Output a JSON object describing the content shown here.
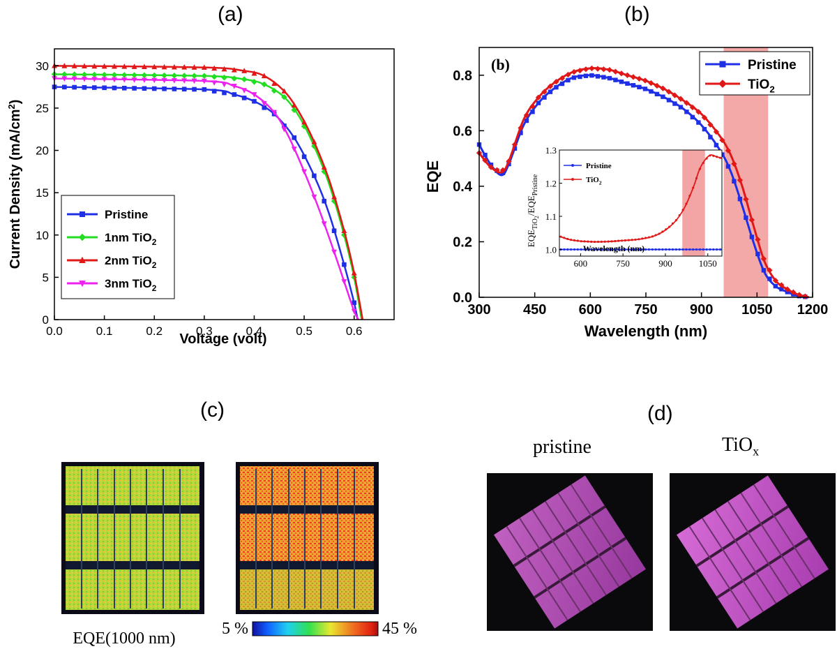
{
  "panels": {
    "a": "(a)",
    "b": "(b)",
    "c": "(c)",
    "d": "(d)"
  },
  "colors": {
    "pristine": "#1f2fe6",
    "tio2_1nm": "#22dd22",
    "tio2_2nm": "#e01818",
    "tio2_3nm": "#ee22ee",
    "highlight": "#f29a9a"
  },
  "chart_data": [
    {
      "id": "a",
      "type": "line",
      "title": "",
      "xlabel": "Voltage (volt)",
      "ylabel": "Current Density (mA/cm²)",
      "xlim": [
        0.0,
        0.68
      ],
      "ylim": [
        0,
        32
      ],
      "xticks": [
        "0.0",
        "0.1",
        "0.2",
        "0.3",
        "0.4",
        "0.5",
        "0.6"
      ],
      "yticks": [
        "0",
        "5",
        "10",
        "15",
        "20",
        "25",
        "30"
      ],
      "legend": {
        "position": "bottom-left",
        "entries": [
          "Pristine",
          "1nm TiO2",
          "2nm TiO2",
          "3nm TiO2"
        ]
      },
      "series": [
        {
          "name": "Pristine",
          "marker": "square",
          "x": [
            0,
            0.3,
            0.36,
            0.4,
            0.44,
            0.48,
            0.52,
            0.55,
            0.58,
            0.6,
            0.607
          ],
          "y": [
            27.5,
            27.2,
            26.6,
            25.8,
            24.3,
            21.5,
            17.0,
            12.5,
            6.5,
            2.0,
            0
          ]
        },
        {
          "name": "1nm TiO2",
          "marker": "diamond",
          "x": [
            0,
            0.3,
            0.38,
            0.42,
            0.46,
            0.49,
            0.52,
            0.55,
            0.58,
            0.6,
            0.615
          ],
          "y": [
            29.0,
            28.8,
            28.4,
            27.8,
            26.3,
            24.0,
            20.5,
            16.0,
            10.0,
            5.0,
            0
          ]
        },
        {
          "name": "2nm TiO2",
          "marker": "triangle-up",
          "x": [
            0,
            0.3,
            0.38,
            0.42,
            0.46,
            0.49,
            0.52,
            0.55,
            0.58,
            0.6,
            0.617
          ],
          "y": [
            30.0,
            29.8,
            29.4,
            28.8,
            27.0,
            24.5,
            21.0,
            16.5,
            10.5,
            5.5,
            0
          ]
        },
        {
          "name": "3nm TiO2",
          "marker": "triangle-down",
          "x": [
            0,
            0.3,
            0.36,
            0.4,
            0.44,
            0.47,
            0.5,
            0.53,
            0.56,
            0.58,
            0.6,
            0.609
          ],
          "y": [
            28.5,
            28.2,
            27.6,
            26.6,
            24.5,
            21.5,
            17.5,
            13.0,
            8.0,
            4.5,
            1.0,
            0
          ]
        }
      ]
    },
    {
      "id": "b",
      "type": "line",
      "title": "(b)",
      "xlabel": "Wavelength (nm)",
      "ylabel": "EQE",
      "xlim": [
        300,
        1200
      ],
      "ylim": [
        0,
        0.9
      ],
      "xticks": [
        "300",
        "450",
        "600",
        "750",
        "900",
        "1050",
        "1200"
      ],
      "yticks": [
        "0.0",
        "0.2",
        "0.4",
        "0.6",
        "0.8"
      ],
      "highlight_band": [
        960,
        1080
      ],
      "legend": {
        "position": "top-right",
        "entries": [
          "Pristine",
          "TiO2"
        ]
      },
      "series": [
        {
          "name": "Pristine",
          "marker": "square",
          "x": [
            300,
            330,
            360,
            380,
            420,
            460,
            500,
            550,
            600,
            650,
            700,
            750,
            800,
            850,
            900,
            950,
            980,
            1010,
            1040,
            1070,
            1100,
            1130,
            1160,
            1190
          ],
          "y": [
            0.55,
            0.48,
            0.44,
            0.48,
            0.62,
            0.7,
            0.75,
            0.79,
            0.8,
            0.79,
            0.77,
            0.75,
            0.72,
            0.68,
            0.62,
            0.53,
            0.45,
            0.33,
            0.2,
            0.09,
            0.04,
            0.02,
            0.005,
            0.0
          ]
        },
        {
          "name": "TiO2",
          "marker": "diamond",
          "x": [
            300,
            330,
            360,
            380,
            420,
            460,
            500,
            550,
            600,
            650,
            700,
            750,
            800,
            850,
            900,
            950,
            980,
            1010,
            1040,
            1070,
            1100,
            1130,
            1160,
            1190
          ],
          "y": [
            0.52,
            0.47,
            0.45,
            0.49,
            0.64,
            0.72,
            0.77,
            0.81,
            0.825,
            0.82,
            0.8,
            0.78,
            0.75,
            0.71,
            0.66,
            0.58,
            0.51,
            0.4,
            0.26,
            0.13,
            0.06,
            0.03,
            0.01,
            0.0
          ]
        }
      ],
      "inset": {
        "type": "line",
        "xlabel": "Wavelength (nm)",
        "ylabel": "EQE_TiO2/EQE_Pristine",
        "ylabel_main": "EQE",
        "ylabel_sub1": "TiO",
        "ylabel_sub2": "2",
        "ylabel_mid": "/EQE",
        "ylabel_sub3": "Pristine",
        "xlim": [
          525,
          1100
        ],
        "ylim": [
          0.98,
          1.3
        ],
        "xticks": [
          "600",
          "750",
          "900",
          "1050"
        ],
        "yticks": [
          "1.0",
          "1.1",
          "1.2",
          "1.3"
        ],
        "highlight_band": [
          960,
          1040
        ],
        "legend": {
          "position": "top-left",
          "entries": [
            "Pristine",
            "TiO2"
          ]
        },
        "series": [
          {
            "name": "Pristine",
            "x": [
              525,
              1100
            ],
            "y": [
              1.0,
              1.0
            ]
          },
          {
            "name": "TiO2",
            "x": [
              525,
              560,
              600,
              650,
              700,
              750,
              800,
              850,
              880,
              910,
              940,
              970,
              1000,
              1020,
              1040,
              1060,
              1080,
              1100
            ],
            "y": [
              1.04,
              1.03,
              1.025,
              1.023,
              1.024,
              1.027,
              1.03,
              1.038,
              1.048,
              1.065,
              1.09,
              1.13,
              1.19,
              1.24,
              1.27,
              1.285,
              1.28,
              1.275
            ]
          }
        ]
      }
    }
  ],
  "figure_c": {
    "caption": "EQE(1000 nm)",
    "scale_min": "5 %",
    "scale_max": "45 %"
  },
  "figure_d": {
    "left_label": "pristine",
    "right_label_main": "TiO",
    "right_label_sub": "x"
  }
}
